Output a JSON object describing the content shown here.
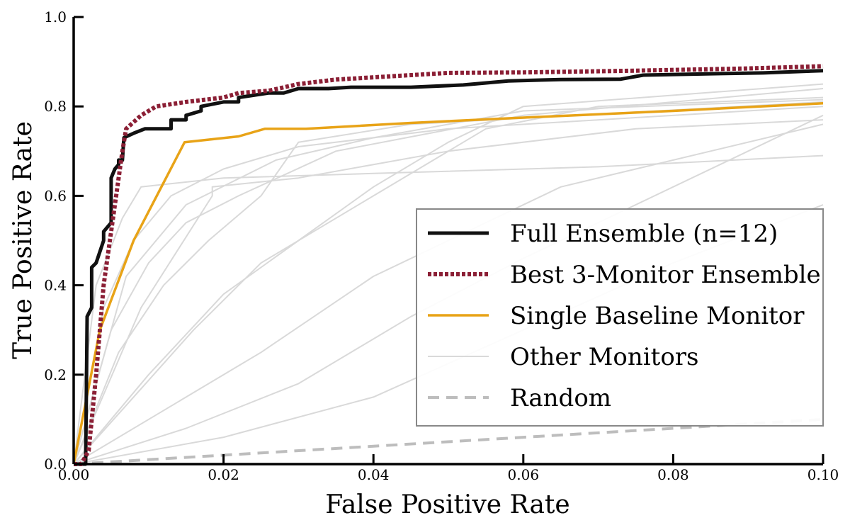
{
  "chart_data": {
    "type": "line",
    "xlabel": "False Positive Rate",
    "ylabel": "True Positive Rate",
    "xlim": [
      0.0,
      0.1
    ],
    "ylim": [
      0.0,
      1.0
    ],
    "x_ticks": [
      "0.00",
      "0.02",
      "0.04",
      "0.06",
      "0.08",
      "0.10"
    ],
    "y_ticks": [
      "0.0",
      "0.2",
      "0.4",
      "0.6",
      "0.8",
      "1.0"
    ],
    "legend_position": "lower-right",
    "grid": false,
    "series": [
      {
        "name": "Full Ensemble (n=12)",
        "color": "#111111",
        "style": "solid",
        "points": [
          [
            0,
            0
          ],
          [
            0.0016,
            0.0
          ],
          [
            0.0018,
            0.33
          ],
          [
            0.0024,
            0.35
          ],
          [
            0.0024,
            0.44
          ],
          [
            0.003,
            0.45
          ],
          [
            0.004,
            0.5
          ],
          [
            0.004,
            0.52
          ],
          [
            0.005,
            0.54
          ],
          [
            0.005,
            0.64
          ],
          [
            0.0055,
            0.66
          ],
          [
            0.006,
            0.67
          ],
          [
            0.006,
            0.68
          ],
          [
            0.0065,
            0.68
          ],
          [
            0.0067,
            0.73
          ],
          [
            0.008,
            0.74
          ],
          [
            0.0095,
            0.75
          ],
          [
            0.013,
            0.75
          ],
          [
            0.013,
            0.77
          ],
          [
            0.015,
            0.77
          ],
          [
            0.015,
            0.78
          ],
          [
            0.017,
            0.79
          ],
          [
            0.017,
            0.8
          ],
          [
            0.02,
            0.81
          ],
          [
            0.022,
            0.81
          ],
          [
            0.022,
            0.82
          ],
          [
            0.026,
            0.83
          ],
          [
            0.028,
            0.83
          ],
          [
            0.03,
            0.84
          ],
          [
            0.034,
            0.84
          ],
          [
            0.037,
            0.843
          ],
          [
            0.045,
            0.843
          ],
          [
            0.052,
            0.848
          ],
          [
            0.058,
            0.857
          ],
          [
            0.065,
            0.86
          ],
          [
            0.073,
            0.861
          ],
          [
            0.076,
            0.87
          ],
          [
            0.085,
            0.873
          ],
          [
            0.092,
            0.875
          ],
          [
            0.1,
            0.88
          ]
        ]
      },
      {
        "name": "Best 3-Monitor Ensemble",
        "color": "#8b1f35",
        "style": "dotted",
        "points": [
          [
            0,
            0
          ],
          [
            0.001,
            0.0
          ],
          [
            0.002,
            0.03
          ],
          [
            0.003,
            0.2
          ],
          [
            0.004,
            0.4
          ],
          [
            0.005,
            0.52
          ],
          [
            0.006,
            0.64
          ],
          [
            0.0065,
            0.7
          ],
          [
            0.007,
            0.75
          ],
          [
            0.009,
            0.78
          ],
          [
            0.011,
            0.8
          ],
          [
            0.015,
            0.81
          ],
          [
            0.02,
            0.82
          ],
          [
            0.022,
            0.83
          ],
          [
            0.026,
            0.835
          ],
          [
            0.03,
            0.85
          ],
          [
            0.035,
            0.86
          ],
          [
            0.045,
            0.87
          ],
          [
            0.05,
            0.875
          ],
          [
            0.06,
            0.876
          ],
          [
            0.075,
            0.88
          ],
          [
            0.09,
            0.885
          ],
          [
            0.1,
            0.89
          ]
        ]
      },
      {
        "name": "Single Baseline Monitor",
        "color": "#e8a317",
        "style": "solid",
        "points": [
          [
            0,
            0
          ],
          [
            0.0035,
            0.3
          ],
          [
            0.008,
            0.5
          ],
          [
            0.0148,
            0.72
          ],
          [
            0.022,
            0.733
          ],
          [
            0.0255,
            0.75
          ],
          [
            0.031,
            0.75
          ],
          [
            0.045,
            0.763
          ],
          [
            0.06,
            0.775
          ],
          [
            0.08,
            0.79
          ],
          [
            0.1,
            0.807
          ]
        ]
      },
      {
        "name": "Other Monitors",
        "color": "#d9d9d9",
        "style": "solid",
        "lines": [
          [
            [
              0,
              0
            ],
            [
              0.003,
              0.4
            ],
            [
              0.0065,
              0.55
            ],
            [
              0.009,
              0.62
            ],
            [
              0.02,
              0.64
            ],
            [
              0.04,
              0.65
            ],
            [
              0.07,
              0.665
            ],
            [
              0.1,
              0.69
            ]
          ],
          [
            [
              0,
              0
            ],
            [
              0.004,
              0.35
            ],
            [
              0.008,
              0.5
            ],
            [
              0.013,
              0.6
            ],
            [
              0.02,
              0.66
            ],
            [
              0.03,
              0.71
            ],
            [
              0.05,
              0.75
            ],
            [
              0.1,
              0.8
            ]
          ],
          [
            [
              0,
              0
            ],
            [
              0.005,
              0.3
            ],
            [
              0.01,
              0.45
            ],
            [
              0.015,
              0.54
            ],
            [
              0.022,
              0.6
            ],
            [
              0.035,
              0.7
            ],
            [
              0.06,
              0.78
            ],
            [
              0.1,
              0.84
            ]
          ],
          [
            [
              0,
              0
            ],
            [
              0.006,
              0.25
            ],
            [
              0.012,
              0.4
            ],
            [
              0.018,
              0.5
            ],
            [
              0.025,
              0.6
            ],
            [
              0.03,
              0.72
            ],
            [
              0.045,
              0.76
            ],
            [
              0.1,
              0.81
            ]
          ],
          [
            [
              0,
              0
            ],
            [
              0.01,
              0.2
            ],
            [
              0.02,
              0.38
            ],
            [
              0.03,
              0.5
            ],
            [
              0.04,
              0.62
            ],
            [
              0.05,
              0.72
            ],
            [
              0.06,
              0.8
            ],
            [
              0.1,
              0.85
            ]
          ],
          [
            [
              0,
              0
            ],
            [
              0.008,
              0.15
            ],
            [
              0.016,
              0.3
            ],
            [
              0.025,
              0.45
            ],
            [
              0.04,
              0.6
            ],
            [
              0.055,
              0.75
            ],
            [
              0.07,
              0.8
            ],
            [
              0.1,
              0.82
            ]
          ],
          [
            [
              0,
              0
            ],
            [
              0.012,
              0.12
            ],
            [
              0.025,
              0.25
            ],
            [
              0.04,
              0.42
            ],
            [
              0.05,
              0.5
            ],
            [
              0.065,
              0.62
            ],
            [
              0.1,
              0.76
            ]
          ],
          [
            [
              0,
              0
            ],
            [
              0.015,
              0.08
            ],
            [
              0.03,
              0.18
            ],
            [
              0.045,
              0.33
            ],
            [
              0.06,
              0.46
            ],
            [
              0.075,
              0.58
            ],
            [
              0.1,
              0.78
            ]
          ],
          [
            [
              0,
              0
            ],
            [
              0.02,
              0.06
            ],
            [
              0.04,
              0.15
            ],
            [
              0.06,
              0.3
            ],
            [
              0.08,
              0.45
            ],
            [
              0.1,
              0.58
            ]
          ],
          [
            [
              0,
              0
            ],
            [
              0.009,
              0.35
            ],
            [
              0.0185,
              0.6
            ],
            [
              0.0185,
              0.62
            ],
            [
              0.03,
              0.64
            ],
            [
              0.05,
              0.7
            ],
            [
              0.075,
              0.75
            ],
            [
              0.1,
              0.77
            ]
          ],
          [
            [
              0,
              0
            ],
            [
              0.007,
              0.42
            ],
            [
              0.015,
              0.58
            ],
            [
              0.027,
              0.68
            ],
            [
              0.04,
              0.73
            ],
            [
              0.06,
              0.79
            ],
            [
              0.1,
              0.815
            ]
          ]
        ]
      },
      {
        "name": "Random",
        "color": "#bdbdbd",
        "style": "dashed",
        "points": [
          [
            0,
            0
          ],
          [
            0.1,
            0.1
          ]
        ]
      }
    ]
  }
}
